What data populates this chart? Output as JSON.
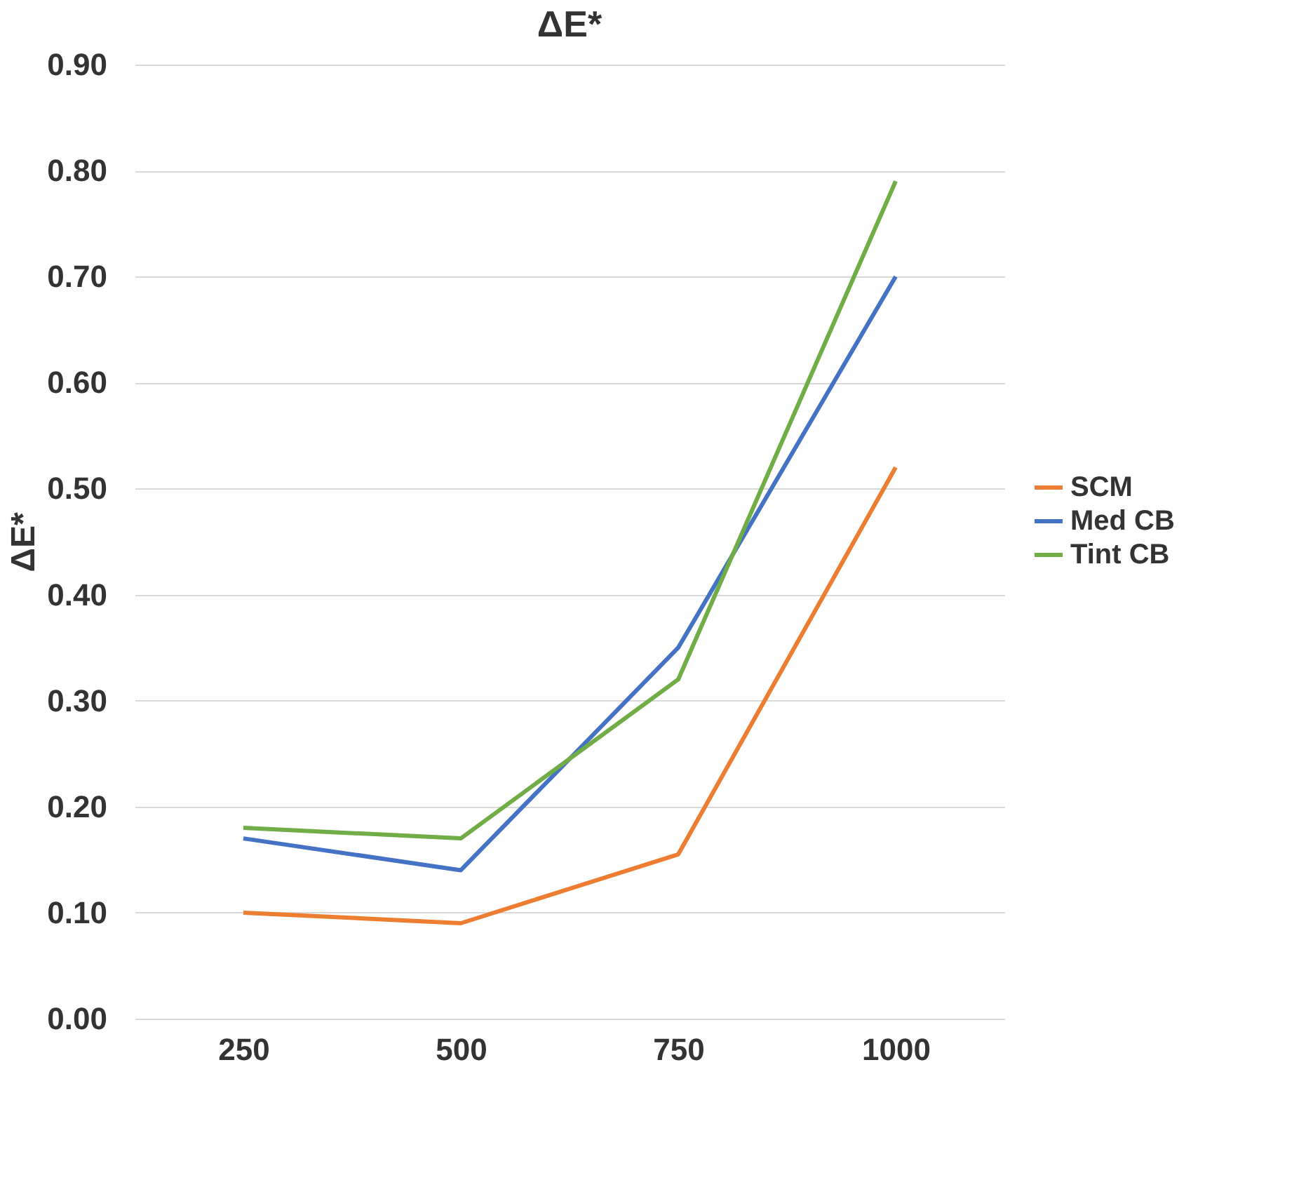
{
  "chart_data": {
    "type": "line",
    "title": "ΔE*",
    "ylabel": "ΔE*",
    "categories": [
      "250",
      "500",
      "750",
      "1000"
    ],
    "series": [
      {
        "name": "SCM",
        "color": "#ed7d31",
        "values": [
          0.1,
          0.09,
          0.155,
          0.52
        ]
      },
      {
        "name": "Med CB",
        "color": "#4472c4",
        "values": [
          0.17,
          0.14,
          0.35,
          0.7
        ]
      },
      {
        "name": "Tint CB",
        "color": "#70ad47",
        "values": [
          0.18,
          0.17,
          0.32,
          0.79
        ]
      }
    ],
    "ylim": [
      0,
      0.9
    ],
    "yticks": [
      {
        "value": 0,
        "label": "0.00"
      },
      {
        "value": 0.1,
        "label": "0.10"
      },
      {
        "value": 0.2,
        "label": "0.20"
      },
      {
        "value": 0.3,
        "label": "0.30"
      },
      {
        "value": 0.4,
        "label": "0.40"
      },
      {
        "value": 0.5,
        "label": "0.50"
      },
      {
        "value": 0.6,
        "label": "0.60"
      },
      {
        "value": 0.7,
        "label": "0.70"
      },
      {
        "value": 0.8,
        "label": "0.80"
      },
      {
        "value": 0.9,
        "label": "0.90"
      }
    ],
    "grid": "y",
    "legend": "right",
    "line_style": "solid"
  }
}
